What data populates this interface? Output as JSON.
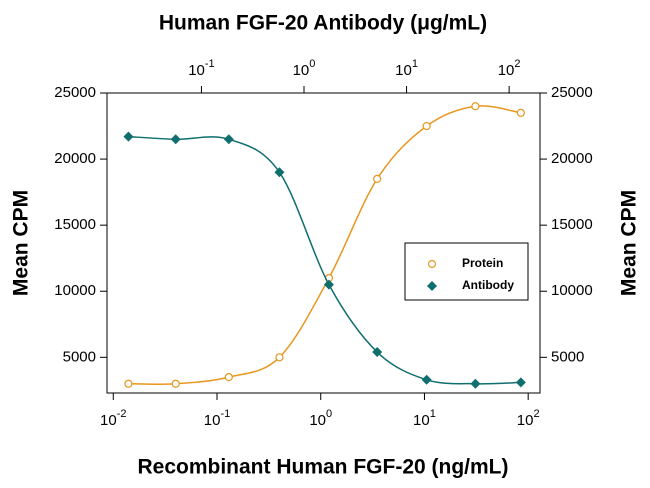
{
  "chart_data": {
    "type": "scatter",
    "title": "Human FGF-20 Antibody (μg/mL)",
    "xlabel": "Recombinant Human FGF-20 (ng/mL)",
    "ylabel": "Mean CPM",
    "y2label": "Mean CPM",
    "xscale": "log",
    "x2scale": "log",
    "xlim": [
      0.0087,
      130
    ],
    "xticks": [
      {
        "value": 0.01,
        "label": "10",
        "exponent": "-2"
      },
      {
        "value": 0.1,
        "label": "10",
        "exponent": "-1"
      },
      {
        "value": 1,
        "label": "10",
        "exponent": "0"
      },
      {
        "value": 10,
        "label": "10",
        "exponent": "1"
      },
      {
        "value": 100,
        "label": "10",
        "exponent": "2"
      }
    ],
    "x2lim": [
      0.012,
      200
    ],
    "x2ticks": [
      {
        "value": 0.1,
        "label": "10",
        "exponent": "-1"
      },
      {
        "value": 1,
        "label": "10",
        "exponent": "0"
      },
      {
        "value": 10,
        "label": "10",
        "exponent": "1"
      },
      {
        "value": 100,
        "label": "10",
        "exponent": "2"
      }
    ],
    "ylim": [
      2300,
      25000
    ],
    "yticks": [
      5000,
      10000,
      15000,
      20000,
      25000
    ],
    "y2lim": [
      2300,
      25000
    ],
    "y2ticks": [
      5000,
      10000,
      15000,
      20000,
      25000
    ],
    "legend": "center-right",
    "series": [
      {
        "name": "Protein",
        "color": "#e8961e",
        "marker": "open-circle",
        "x": [
          0.014,
          0.04,
          0.13,
          0.4,
          1.2,
          3.5,
          10.5,
          31,
          85
        ],
        "values": [
          3000,
          3000,
          3500,
          5000,
          11000,
          18500,
          22500,
          24000,
          23500
        ]
      },
      {
        "name": "Antibody",
        "color": "#0f6e6e",
        "marker": "diamond",
        "x": [
          0.014,
          0.04,
          0.13,
          0.4,
          1.2,
          3.5,
          10.5,
          31,
          85
        ],
        "values": [
          21700,
          21500,
          21500,
          19000,
          10500,
          5400,
          3300,
          3000,
          3100
        ]
      }
    ]
  }
}
